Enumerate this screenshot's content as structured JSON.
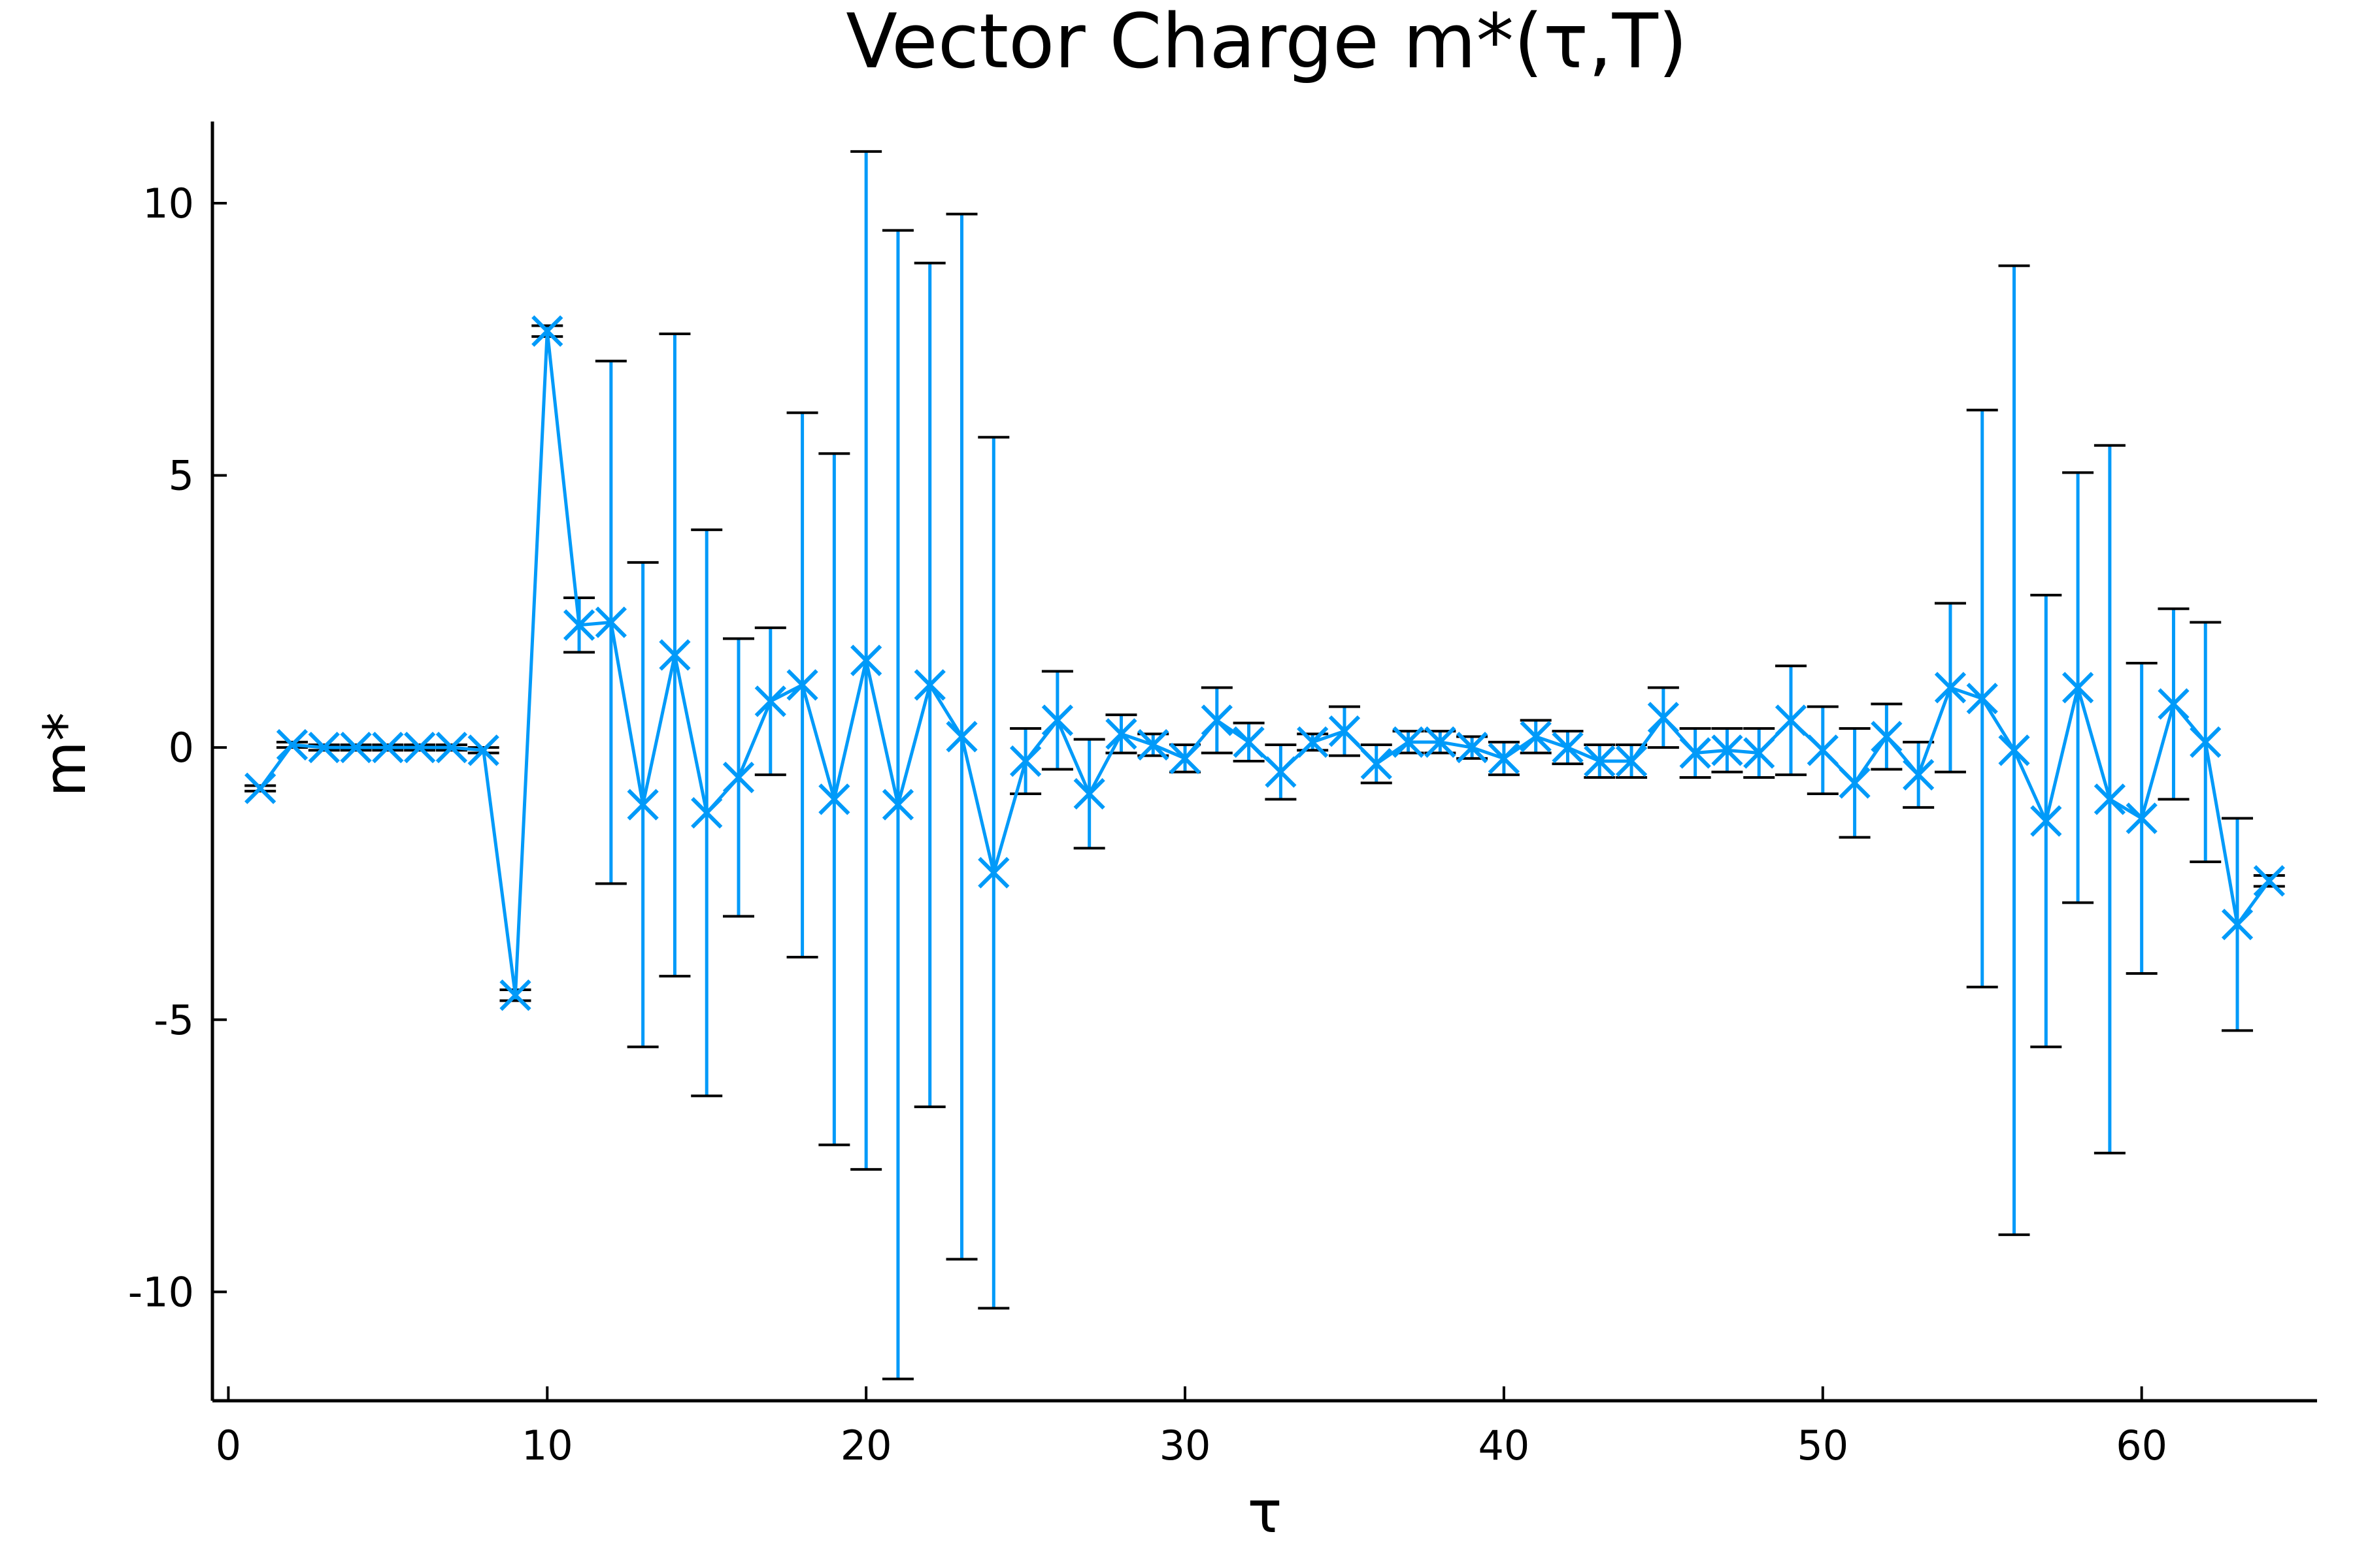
{
  "chart_data": {
    "type": "scatter",
    "title": "Vector Charge m*(τ,T)",
    "xlabel": "τ",
    "ylabel": "m*",
    "xlim": [
      -0.5,
      65.5
    ],
    "ylim": [
      -12.0,
      11.5
    ],
    "xticks": [
      0,
      10,
      20,
      30,
      40,
      50,
      60
    ],
    "yticks": [
      -10,
      -5,
      0,
      5,
      10
    ],
    "xtick_labels": [
      "0",
      "10",
      "20",
      "30",
      "40",
      "50",
      "60"
    ],
    "ytick_labels": [
      "-10",
      "-5",
      "0",
      "5",
      "10"
    ],
    "grid": false,
    "legend": "none",
    "series": [
      {
        "marker": "x",
        "color": "#009af9",
        "errorbar_cap_color": "#000000",
        "x": [
          1,
          2,
          3,
          4,
          5,
          6,
          7,
          8,
          9,
          10,
          11,
          12,
          13,
          14,
          15,
          16,
          17,
          18,
          19,
          20,
          21,
          22,
          23,
          24,
          25,
          26,
          27,
          28,
          29,
          30,
          31,
          32,
          33,
          34,
          35,
          36,
          37,
          38,
          39,
          40,
          41,
          42,
          43,
          44,
          45,
          46,
          47,
          48,
          49,
          50,
          51,
          52,
          53,
          54,
          55,
          56,
          57,
          58,
          59,
          60,
          61,
          62,
          63,
          64
        ],
        "y": [
          -0.75,
          0.05,
          0.0,
          0.0,
          0.0,
          0.0,
          0.0,
          -0.05,
          -4.55,
          7.65,
          2.25,
          2.3,
          -1.05,
          1.7,
          -1.2,
          -0.55,
          0.85,
          1.15,
          -0.95,
          1.6,
          -1.05,
          1.15,
          0.2,
          -2.3,
          -0.25,
          0.5,
          -0.85,
          0.25,
          0.05,
          -0.2,
          0.5,
          0.1,
          -0.45,
          0.1,
          0.3,
          -0.3,
          0.1,
          0.1,
          0.0,
          -0.2,
          0.2,
          0.0,
          -0.25,
          -0.25,
          0.55,
          -0.1,
          -0.05,
          -0.1,
          0.5,
          -0.05,
          -0.65,
          0.2,
          -0.5,
          1.1,
          0.9,
          -0.05,
          -1.35,
          1.1,
          -0.95,
          -1.3,
          0.8,
          0.1,
          -3.25,
          -2.45
        ],
        "err": [
          0.05,
          0.05,
          0.05,
          0.05,
          0.05,
          0.05,
          0.05,
          0.05,
          0.1,
          0.1,
          0.5,
          4.8,
          4.45,
          5.9,
          5.2,
          2.55,
          1.35,
          5.0,
          6.35,
          9.35,
          10.55,
          7.75,
          9.6,
          8.0,
          0.6,
          0.9,
          1.0,
          0.35,
          0.2,
          0.25,
          0.6,
          0.35,
          0.5,
          0.15,
          0.45,
          0.35,
          0.2,
          0.2,
          0.2,
          0.3,
          0.3,
          0.3,
          0.3,
          0.3,
          0.55,
          0.45,
          0.4,
          0.45,
          1.0,
          0.8,
          1.0,
          0.6,
          0.6,
          1.55,
          5.3,
          8.9,
          4.15,
          3.95,
          6.5,
          2.85,
          1.75,
          2.2,
          1.95,
          0.1
        ]
      }
    ]
  }
}
